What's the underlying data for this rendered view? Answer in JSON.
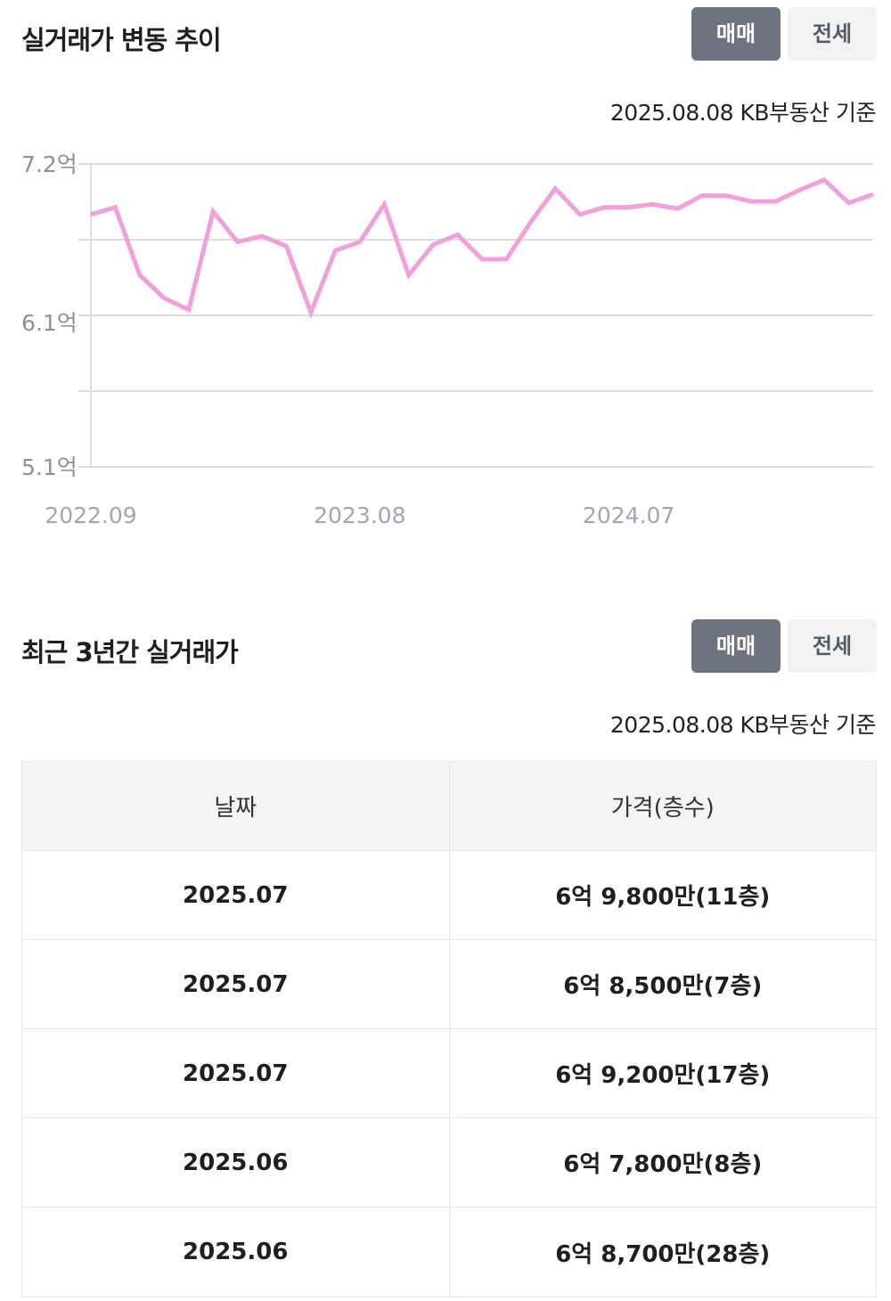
{
  "trend_section": {
    "title": "실거래가 변동 추이",
    "toggle_sale": "매매",
    "toggle_jeonse": "전세",
    "basis": "2025.08.08 KB부동산 기준"
  },
  "recent_section": {
    "title": "최근 3년간 실거래가",
    "toggle_sale": "매매",
    "toggle_jeonse": "전세",
    "basis": "2025.08.08 KB부동산 기준"
  },
  "chart_data": {
    "type": "line",
    "title": "",
    "xlabel": "",
    "ylabel": "",
    "ylim": [
      5.1,
      7.2
    ],
    "y_ticks": [
      "7.2억",
      "6.1억",
      "5.1억"
    ],
    "y_tick_values": [
      7.2,
      6.1,
      5.1
    ],
    "x_ticks": [
      "2022.09",
      "2023.08",
      "2024.07"
    ],
    "x_tick_index": [
      0,
      11,
      22
    ],
    "grid": true,
    "line_color": "#f2a0d8",
    "series": [
      {
        "values": [
          6.85,
          6.9,
          6.43,
          6.27,
          6.19,
          6.87,
          6.66,
          6.7,
          6.63,
          6.17,
          6.6,
          6.66,
          6.92,
          6.43,
          6.64,
          6.71,
          6.54,
          6.54,
          6.8,
          7.03,
          6.85,
          6.9,
          6.9,
          6.92,
          6.89,
          6.98,
          6.98,
          6.94,
          6.94,
          7.02,
          7.09,
          6.93,
          6.99
        ]
      }
    ]
  },
  "table": {
    "headers": [
      "날짜",
      "가격(층수)"
    ],
    "rows": [
      {
        "date": "2025.07",
        "price": "6억 9,800만(11층)"
      },
      {
        "date": "2025.07",
        "price": "6억 8,500만(7층)"
      },
      {
        "date": "2025.07",
        "price": "6억 9,200만(17층)"
      },
      {
        "date": "2025.06",
        "price": "6억 7,800만(8층)"
      },
      {
        "date": "2025.06",
        "price": "6억 8,700만(28층)"
      }
    ]
  }
}
